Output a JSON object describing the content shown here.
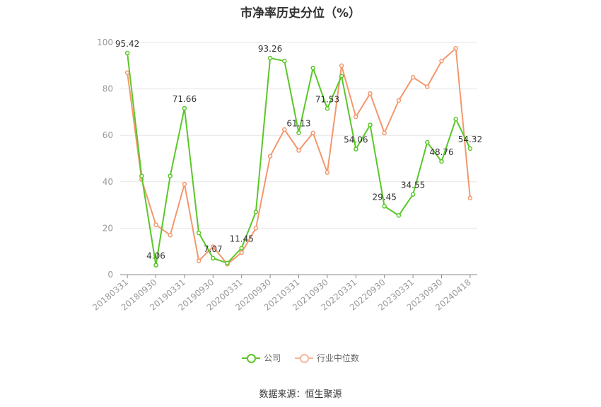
{
  "chart_data": {
    "type": "line",
    "title": "市净率历史分位（%）",
    "ylim": [
      0,
      100
    ],
    "yticks": [
      0,
      20,
      40,
      60,
      80,
      100
    ],
    "xticks": [
      "20180331",
      "20180930",
      "20190331",
      "20190930",
      "20200331",
      "20200930",
      "20210331",
      "20210930",
      "20220331",
      "20220930",
      "20230331",
      "20230930",
      "20240418"
    ],
    "grid": true,
    "legend_position": "bottom",
    "series": [
      {
        "name": "公司",
        "color": "#5ac728",
        "values": [
          95.42,
          42.5,
          4.06,
          42.5,
          71.66,
          18.0,
          7.07,
          5.0,
          11.45,
          27.0,
          93.26,
          92.0,
          61.13,
          89.0,
          71.53,
          85.5,
          54.06,
          64.5,
          29.45,
          25.5,
          34.55,
          57.0,
          48.76,
          67.0,
          54.32
        ]
      },
      {
        "name": "行业中位数",
        "color": "#f4976c",
        "values": [
          87.0,
          41.0,
          21.5,
          17.0,
          39.0,
          6.0,
          12.0,
          4.5,
          9.5,
          20.0,
          51.0,
          62.5,
          53.5,
          61.0,
          44.0,
          90.0,
          68.0,
          78.0,
          61.0,
          75.0,
          85.0,
          81.0,
          92.0,
          97.5,
          33.0
        ]
      }
    ],
    "data_labels": [
      {
        "index": 0,
        "text": "95.42"
      },
      {
        "index": 2,
        "text": "4.06"
      },
      {
        "index": 4,
        "text": "71.66"
      },
      {
        "index": 6,
        "text": "7.07"
      },
      {
        "index": 8,
        "text": "11.45"
      },
      {
        "index": 10,
        "text": "93.26"
      },
      {
        "index": 12,
        "text": "61.13"
      },
      {
        "index": 14,
        "text": "71.53"
      },
      {
        "index": 16,
        "text": "54.06"
      },
      {
        "index": 18,
        "text": "29.45"
      },
      {
        "index": 20,
        "text": "34.55"
      },
      {
        "index": 22,
        "text": "48.76"
      },
      {
        "index": 24,
        "text": "54.32"
      }
    ]
  },
  "legend": {
    "company": "公司",
    "industry": "行业中位数"
  },
  "source": "数据来源：恒生聚源"
}
